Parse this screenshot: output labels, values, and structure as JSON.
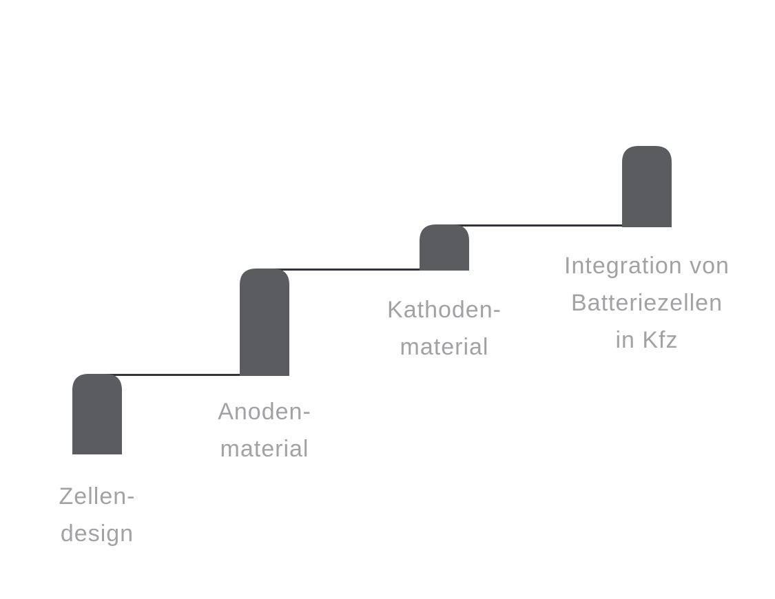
{
  "colors": {
    "pillar": "#5b5c60",
    "connector": "#333438",
    "label": "#a2a2a4",
    "background": "#ffffff"
  },
  "steps": [
    {
      "label_lines": [
        "Zellen-",
        "design"
      ]
    },
    {
      "label_lines": [
        "Anoden-",
        "material"
      ]
    },
    {
      "label_lines": [
        "Kathoden-",
        "material"
      ]
    },
    {
      "label_lines": [
        "Integration von",
        "Batteriezellen",
        "in Kfz"
      ]
    }
  ]
}
